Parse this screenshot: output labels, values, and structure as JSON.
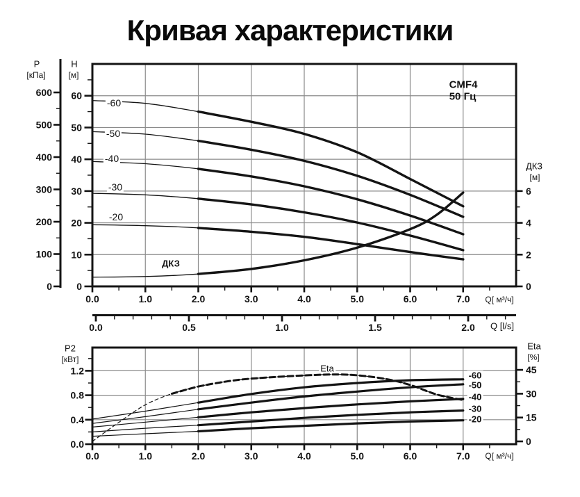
{
  "title": "Кривая характеристики",
  "top_chart": {
    "model": "CMF4",
    "frequency": "50 Гц",
    "p_axis": {
      "name": "P",
      "unit": "[кПа]",
      "tick_labels": [
        "0",
        "100",
        "200",
        "300",
        "400",
        "500",
        "600"
      ]
    },
    "h_axis": {
      "name": "H",
      "unit": "[м]",
      "tick_labels": [
        "0",
        "10",
        "20",
        "30",
        "40",
        "50",
        "60"
      ]
    },
    "dkz_axis": {
      "name": "ДКЗ",
      "unit": "[м]",
      "tick_labels": [
        "0",
        "2",
        "4",
        "6"
      ]
    },
    "x_axis": {
      "unit_label": "Q[ м³/ч]",
      "tick_labels": [
        "0.0",
        "1.0",
        "2.0",
        "3.0",
        "4.0",
        "5.0",
        "6.0",
        "7.0"
      ]
    }
  },
  "ls_axis": {
    "unit_label": "Q [l/s]",
    "tick_labels": [
      "0.0",
      "0.5",
      "1.0",
      "1.5",
      "2.0"
    ]
  },
  "bottom_chart": {
    "p2_axis": {
      "name": "P2",
      "unit": "[кВт]",
      "tick_labels": [
        "0.0",
        "0.4",
        "0.8",
        "1.2"
      ]
    },
    "eta_axis": {
      "name": "Eta",
      "unit": "[%]",
      "tick_labels": [
        "0",
        "15",
        "30",
        "45"
      ]
    },
    "x_axis": {
      "unit_label": "Q[ м³/ч]",
      "tick_labels": [
        "0.0",
        "1.0",
        "2.0",
        "3.0",
        "4.0",
        "5.0",
        "6.0",
        "7.0"
      ]
    }
  },
  "chart_data": [
    {
      "type": "line",
      "title": "CMF4 50 Гц — напорные характеристики H/Q",
      "x_unit": "м³/ч",
      "x_range": [
        0,
        8
      ],
      "y_left": {
        "name": "H",
        "unit": "м",
        "range": [
          0,
          70
        ],
        "ticks": [
          0,
          10,
          20,
          30,
          40,
          50,
          60
        ]
      },
      "y_left_secondary": {
        "name": "P",
        "unit": "кПа",
        "ticks": [
          0,
          100,
          200,
          300,
          400,
          500,
          600
        ]
      },
      "y_right": {
        "name": "ДКЗ",
        "unit": "м",
        "ticks": [
          0,
          2,
          4,
          6
        ]
      },
      "grid": true,
      "series": [
        {
          "name": "-60",
          "axis": "left",
          "points": [
            [
              0,
              58.5
            ],
            [
              1,
              57.6
            ],
            [
              2,
              55.0
            ],
            [
              3,
              51.8
            ],
            [
              4,
              48.0
            ],
            [
              5,
              42.2
            ],
            [
              6,
              33.8
            ],
            [
              7,
              25.2
            ]
          ]
        },
        {
          "name": "-50",
          "axis": "left",
          "points": [
            [
              0,
              48.7
            ],
            [
              1,
              47.9
            ],
            [
              2,
              45.8
            ],
            [
              3,
              43.0
            ],
            [
              4,
              39.5
            ],
            [
              5,
              34.8
            ],
            [
              6,
              28.8
            ],
            [
              7,
              21.9
            ]
          ]
        },
        {
          "name": "-40",
          "axis": "left",
          "points": [
            [
              0,
              39.3
            ],
            [
              1,
              38.6
            ],
            [
              2,
              37.0
            ],
            [
              3,
              34.6
            ],
            [
              4,
              31.5
            ],
            [
              5,
              27.4
            ],
            [
              6,
              22.3
            ],
            [
              7,
              16.4
            ]
          ]
        },
        {
          "name": "-30",
          "axis": "left",
          "points": [
            [
              0,
              29.3
            ],
            [
              1,
              28.8
            ],
            [
              2,
              27.6
            ],
            [
              3,
              25.8
            ],
            [
              4,
              23.3
            ],
            [
              5,
              20.1
            ],
            [
              6,
              16.0
            ],
            [
              7,
              11.4
            ]
          ]
        },
        {
          "name": "-20",
          "axis": "left",
          "points": [
            [
              0,
              19.4
            ],
            [
              1,
              19.1
            ],
            [
              2,
              18.4
            ],
            [
              3,
              17.2
            ],
            [
              4,
              15.6
            ],
            [
              5,
              13.3
            ],
            [
              6,
              10.8
            ],
            [
              7,
              8.5
            ]
          ]
        },
        {
          "name": "ДКЗ",
          "axis": "right",
          "points": [
            [
              0,
              0.58
            ],
            [
              1,
              0.62
            ],
            [
              2,
              0.78
            ],
            [
              3,
              1.1
            ],
            [
              4,
              1.64
            ],
            [
              5,
              2.44
            ],
            [
              6,
              3.6
            ],
            [
              6.5,
              4.5
            ],
            [
              7,
              5.9
            ]
          ]
        }
      ]
    },
    {
      "type": "line",
      "title": "CMF4 50 Гц — мощность P2 и КПД Eta",
      "x_unit": "м³/ч",
      "x_range": [
        0,
        8
      ],
      "y_left": {
        "name": "P2",
        "unit": "кВт",
        "range": [
          0,
          1.6
        ],
        "ticks": [
          0,
          0.4,
          0.8,
          1.2
        ]
      },
      "y_right": {
        "name": "Eta",
        "unit": "%",
        "ticks": [
          0,
          15,
          30,
          45
        ]
      },
      "grid": true,
      "series": [
        {
          "name": "-60",
          "axis": "left",
          "points": [
            [
              0,
              0.41
            ],
            [
              1,
              0.54
            ],
            [
              2,
              0.68
            ],
            [
              3,
              0.82
            ],
            [
              4,
              0.93
            ],
            [
              5,
              1.0
            ],
            [
              6,
              1.045
            ],
            [
              7,
              1.06
            ]
          ]
        },
        {
          "name": "-50",
          "axis": "left",
          "points": [
            [
              0,
              0.34
            ],
            [
              1,
              0.45
            ],
            [
              2,
              0.57
            ],
            [
              3,
              0.68
            ],
            [
              4,
              0.78
            ],
            [
              5,
              0.86
            ],
            [
              6,
              0.93
            ],
            [
              7,
              0.98
            ]
          ]
        },
        {
          "name": "-40",
          "axis": "left",
          "points": [
            [
              0,
              0.28
            ],
            [
              1,
              0.36
            ],
            [
              2,
              0.44
            ],
            [
              3,
              0.52
            ],
            [
              4,
              0.59
            ],
            [
              5,
              0.65
            ],
            [
              6,
              0.7
            ],
            [
              7,
              0.74
            ]
          ]
        },
        {
          "name": "-30",
          "axis": "left",
          "points": [
            [
              0,
              0.2
            ],
            [
              1,
              0.26
            ],
            [
              2,
              0.31
            ],
            [
              3,
              0.37
            ],
            [
              4,
              0.43
            ],
            [
              5,
              0.48
            ],
            [
              6,
              0.52
            ],
            [
              7,
              0.55
            ]
          ]
        },
        {
          "name": "-20",
          "axis": "left",
          "points": [
            [
              0,
              0.13
            ],
            [
              1,
              0.17
            ],
            [
              2,
              0.21
            ],
            [
              3,
              0.26
            ],
            [
              4,
              0.3
            ],
            [
              5,
              0.34
            ],
            [
              6,
              0.37
            ],
            [
              7,
              0.39
            ]
          ]
        },
        {
          "name": "Eta",
          "axis": "right",
          "style": "dashed",
          "points": [
            [
              0,
              0
            ],
            [
              0.5,
              12
            ],
            [
              1,
              23
            ],
            [
              1.5,
              30
            ],
            [
              2,
              34.5
            ],
            [
              2.5,
              37.5
            ],
            [
              3,
              39.5
            ],
            [
              4,
              41.5
            ],
            [
              4.8,
              42
            ],
            [
              5.5,
              39.5
            ],
            [
              6,
              35.5
            ],
            [
              6.5,
              29.5
            ],
            [
              7,
              26
            ]
          ]
        }
      ]
    }
  ]
}
